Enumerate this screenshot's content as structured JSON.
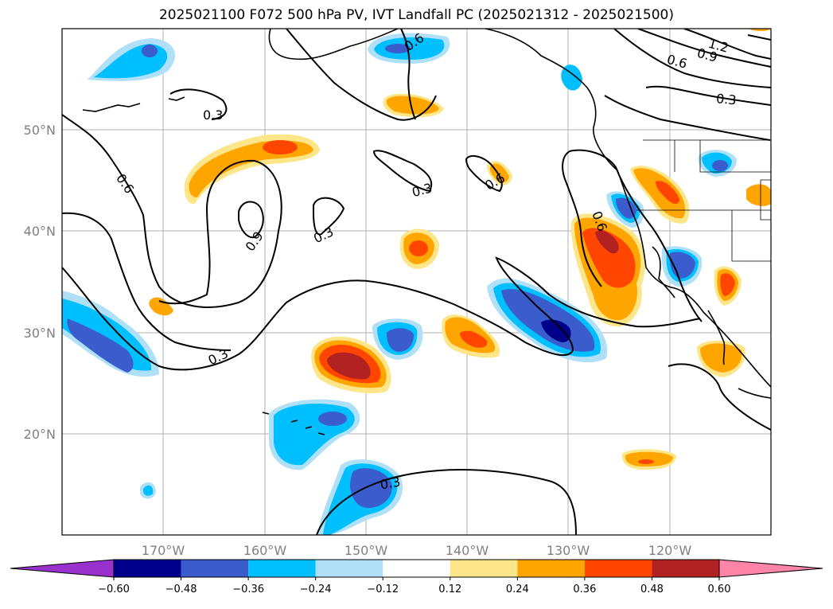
{
  "title": "2025021100 F072 500 hPa PV, IVT Landfall PC (2025021312 - 2025021500)",
  "map": {
    "lat_labels": [
      "50°N",
      "40°N",
      "30°N",
      "20°N"
    ],
    "lon_labels": [
      "170°W",
      "160°W",
      "150°W",
      "140°W",
      "130°W",
      "120°W"
    ],
    "contour_labels": [
      "0.3",
      "0.6",
      "0.9",
      "1.2"
    ],
    "pos_colors": [
      "#fde68a",
      "#ffa500",
      "#ff4500",
      "#b22222"
    ],
    "neg_colors": [
      "#b0e0f8",
      "#00bfff",
      "#3a5ccc",
      "#00008b"
    ],
    "contour_color": "#000000"
  },
  "colorbar": {
    "colors": [
      "#9932cc",
      "#00008b",
      "#3a5ccc",
      "#00bfff",
      "#b0e0f8",
      "#ffffff",
      "#fde68a",
      "#ffa500",
      "#ff4500",
      "#b22222",
      "#ff85a8"
    ],
    "ticks": [
      "−0.60",
      "−0.48",
      "−0.36",
      "−0.24",
      "−0.12",
      "0.12",
      "0.24",
      "0.36",
      "0.48",
      "0.60"
    ]
  }
}
